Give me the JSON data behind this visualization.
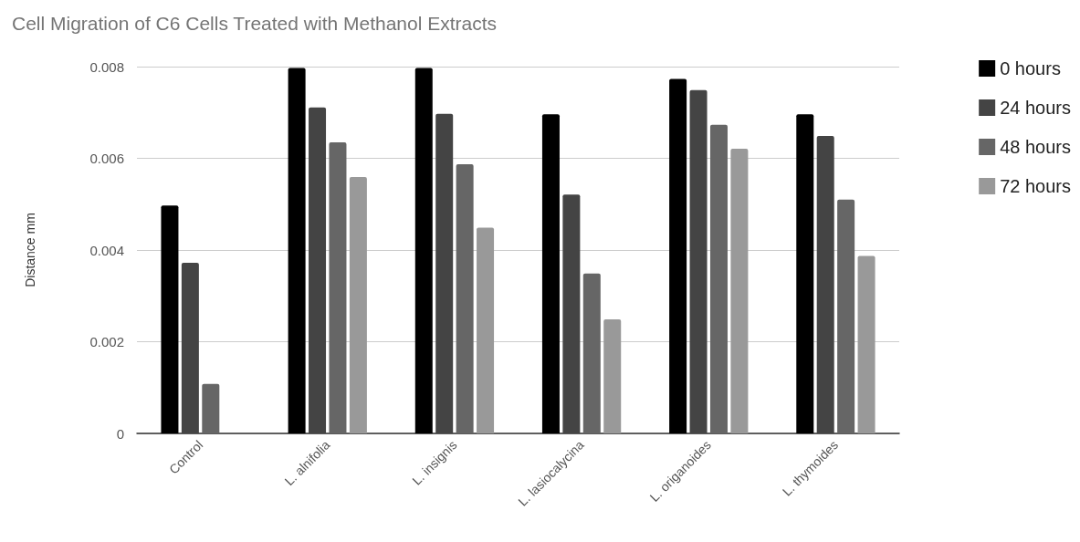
{
  "chart_data": {
    "type": "bar",
    "title": "Cell Migration of C6 Cells Treated with Methanol Extracts",
    "ylabel": "Distance mm",
    "categories": [
      "Control",
      "L. alnifolia",
      "L. insignis",
      "L. lasiocalycina",
      "L. origanoides",
      "L. thymoides"
    ],
    "series": [
      {
        "name": "0 hours",
        "color": "#000000",
        "values": [
          0.00497,
          0.00797,
          0.00797,
          0.00696,
          0.00773,
          0.00696
        ]
      },
      {
        "name": "24 hours",
        "color": "#444444",
        "values": [
          0.00372,
          0.00711,
          0.00697,
          0.00521,
          0.00749,
          0.00649
        ]
      },
      {
        "name": "48 hours",
        "color": "#666666",
        "values": [
          0.00108,
          0.00635,
          0.00587,
          0.00349,
          0.00673,
          0.0051
        ]
      },
      {
        "name": "72 hours",
        "color": "#999999",
        "values": [
          null,
          0.00559,
          0.00449,
          0.00249,
          0.00621,
          0.00387
        ]
      }
    ],
    "ylim": [
      0,
      0.008
    ],
    "yticks": [
      0,
      0.002,
      0.004,
      0.006,
      0.008
    ],
    "grid": "y",
    "legend": "top right"
  }
}
